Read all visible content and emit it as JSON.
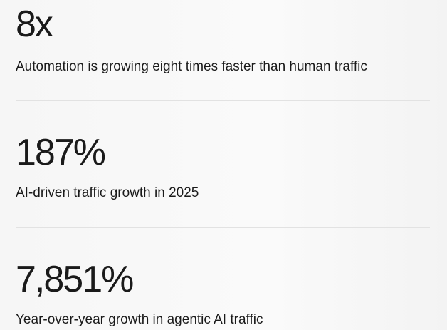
{
  "stats": [
    {
      "value": "8x",
      "label": "Automation is growing eight times faster than human traffic"
    },
    {
      "value": "187%",
      "label": "AI-driven traffic growth in 2025"
    },
    {
      "value": "7,851%",
      "label": "Year-over-year growth in agentic AI traffic"
    }
  ]
}
